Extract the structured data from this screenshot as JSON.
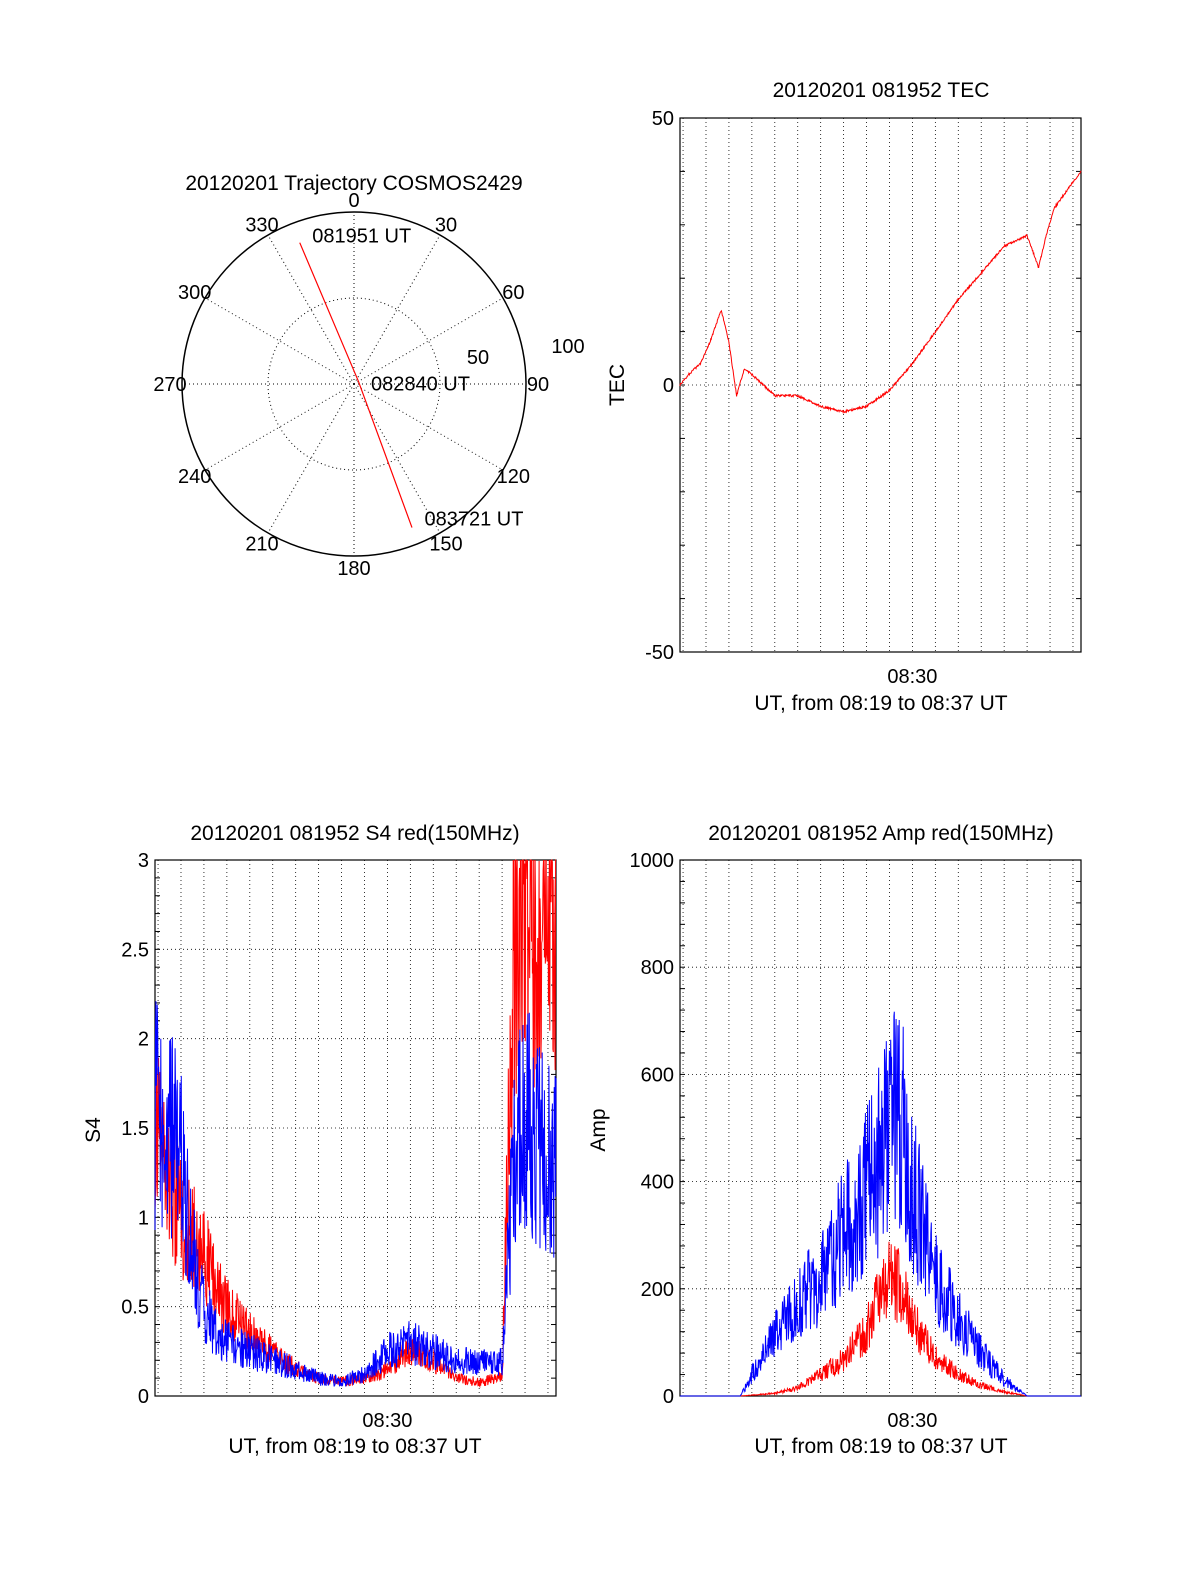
{
  "chart_data": [
    {
      "type": "polar",
      "title": "20120201 Trajectory COSMOS2429",
      "azimuth_labels": [
        "0",
        "30",
        "60",
        "90",
        "120",
        "150",
        "180",
        "210",
        "240",
        "270",
        "300",
        "330"
      ],
      "radius_labels": [
        "50",
        "100"
      ],
      "rlim": [
        0,
        100
      ],
      "grid": true,
      "series": [
        {
          "color": "#ff0000",
          "points": [
            {
              "az": 339,
              "r": 88,
              "label": "081951 UT"
            },
            {
              "az": 60,
              "r": 3,
              "label": "082840 UT"
            },
            {
              "az": 158,
              "r": 90,
              "label": "083721 UT"
            }
          ]
        }
      ]
    },
    {
      "type": "line",
      "title": "20120201 081952 TEC",
      "xlabel": "UT, from 08:19 to 08:37 UT",
      "ylabel": "TEC",
      "xlim": [
        "08:19:52",
        "08:37:21"
      ],
      "ylim": [
        -50,
        50
      ],
      "yticks": [
        "-50",
        "0",
        "50"
      ],
      "xticks": [
        "08:30"
      ],
      "grid": true,
      "series": [
        {
          "color": "#ff0000",
          "x": [
            "08:19:52",
            "08:20:15",
            "08:20:45",
            "08:21:10",
            "08:21:40",
            "08:22:00",
            "08:22:20",
            "08:22:40",
            "08:23:00",
            "08:23:30",
            "08:24:00",
            "08:24:30",
            "08:25:00",
            "08:26:00",
            "08:27:00",
            "08:28:00",
            "08:29:00",
            "08:30:00",
            "08:31:00",
            "08:32:00",
            "08:33:00",
            "08:34:00",
            "08:35:00",
            "08:35:30",
            "08:35:50",
            "08:36:10",
            "08:36:30",
            "08:36:50",
            "08:37:21"
          ],
          "y": [
            0,
            2,
            4,
            8,
            14,
            8,
            -2,
            3,
            2,
            0,
            -2,
            -2,
            -2,
            -4,
            -5,
            -4,
            -1,
            4,
            10,
            16,
            21,
            26,
            28,
            22,
            28,
            33,
            35,
            37,
            40
          ]
        }
      ]
    },
    {
      "type": "line",
      "title": "20120201 081952 S4 red(150MHz)",
      "xlabel": "UT, from 08:19 to 08:37 UT",
      "ylabel": "S4",
      "xlim": [
        "08:19:52",
        "08:37:21"
      ],
      "ylim": [
        0,
        3
      ],
      "yticks": [
        "0",
        "0.5",
        "1",
        "1.5",
        "2",
        "2.5",
        "3"
      ],
      "xticks": [
        "08:30"
      ],
      "grid": true,
      "series": [
        {
          "color": "#ff0000",
          "x": [
            "08:19:52",
            "08:20:30",
            "08:21:00",
            "08:21:30",
            "08:22:00",
            "08:22:30",
            "08:23:00",
            "08:24:00",
            "08:25:00",
            "08:26:00",
            "08:27:00",
            "08:28:00",
            "08:29:00",
            "08:30:00",
            "08:31:00",
            "08:32:00",
            "08:33:00",
            "08:34:00",
            "08:35:00",
            "08:35:30",
            "08:36:00",
            "08:36:30",
            "08:37:21"
          ],
          "y": [
            1.6,
            1.2,
            1.0,
            0.9,
            0.8,
            0.6,
            0.5,
            0.35,
            0.25,
            0.15,
            0.1,
            0.08,
            0.1,
            0.15,
            0.25,
            0.2,
            0.1,
            0.08,
            0.1,
            2.5,
            2.8,
            2.6,
            2.7
          ]
        },
        {
          "color": "#0000ff",
          "x": [
            "08:19:52",
            "08:20:30",
            "08:21:00",
            "08:21:30",
            "08:22:00",
            "08:22:30",
            "08:23:00",
            "08:24:00",
            "08:25:00",
            "08:26:00",
            "08:27:00",
            "08:28:00",
            "08:29:00",
            "08:30:00",
            "08:31:00",
            "08:32:00",
            "08:33:00",
            "08:34:00",
            "08:35:00",
            "08:35:30",
            "08:36:00",
            "08:36:30",
            "08:37:21"
          ],
          "y": [
            1.6,
            1.5,
            1.3,
            0.8,
            0.5,
            0.35,
            0.3,
            0.25,
            0.2,
            0.15,
            0.1,
            0.08,
            0.12,
            0.25,
            0.3,
            0.25,
            0.2,
            0.18,
            0.2,
            1.3,
            1.6,
            1.4,
            1.3
          ]
        }
      ]
    },
    {
      "type": "line",
      "title": "20120201 081952 Amp red(150MHz)",
      "xlabel": "UT, from 08:19 to 08:37 UT",
      "ylabel": "Amp",
      "xlim": [
        "08:19:52",
        "08:37:21"
      ],
      "ylim": [
        0,
        1000
      ],
      "yticks": [
        "0",
        "200",
        "400",
        "600",
        "800",
        "1000"
      ],
      "xticks": [
        "08:30"
      ],
      "grid": true,
      "series": [
        {
          "color": "#ff0000",
          "x": [
            "08:19:52",
            "08:22:30",
            "08:24:00",
            "08:25:00",
            "08:26:00",
            "08:27:00",
            "08:28:00",
            "08:28:30",
            "08:29:00",
            "08:29:30",
            "08:30:00",
            "08:31:00",
            "08:32:00",
            "08:33:00",
            "08:34:00",
            "08:35:00",
            "08:37:21"
          ],
          "y": [
            0,
            0,
            5,
            15,
            40,
            70,
            120,
            180,
            220,
            200,
            140,
            70,
            40,
            20,
            8,
            0,
            0
          ]
        },
        {
          "color": "#0000ff",
          "x": [
            "08:19:52",
            "08:22:30",
            "08:23:00",
            "08:24:00",
            "08:25:00",
            "08:26:00",
            "08:27:00",
            "08:28:00",
            "08:28:30",
            "08:29:00",
            "08:29:30",
            "08:30:00",
            "08:31:00",
            "08:32:00",
            "08:33:00",
            "08:34:00",
            "08:35:00",
            "08:37:21"
          ],
          "y": [
            0,
            0,
            40,
            120,
            170,
            220,
            300,
            380,
            430,
            500,
            520,
            380,
            220,
            140,
            80,
            30,
            0,
            0
          ]
        }
      ]
    }
  ]
}
